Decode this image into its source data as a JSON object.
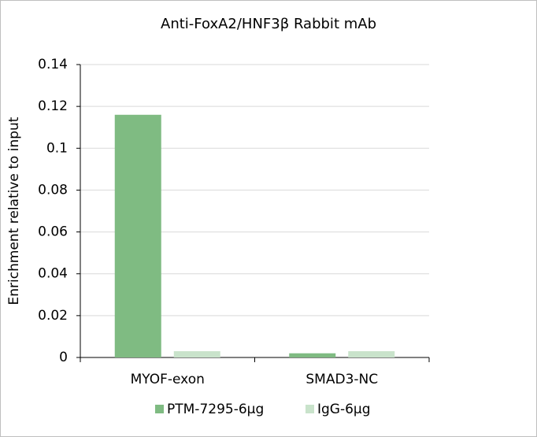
{
  "chart_data": {
    "type": "bar",
    "title": "Anti-FoxA2/HNF3β Rabbit mAb",
    "y_label": "Enrichment relative to input",
    "categories": [
      "MYOF-exon",
      "SMAD3-NC"
    ],
    "series": [
      {
        "name": "PTM-7295-6μg",
        "color": "#7fbb82",
        "values": [
          0.116,
          0.002
        ]
      },
      {
        "name": "IgG-6μg",
        "color": "#c9e3cb",
        "values": [
          0.003,
          0.003
        ]
      }
    ],
    "ylim": [
      0,
      0.14
    ],
    "yticks": [
      0,
      0.02,
      0.04,
      0.06,
      0.08,
      0.1,
      0.12,
      0.14
    ],
    "grid": true,
    "legend": "bottom"
  }
}
